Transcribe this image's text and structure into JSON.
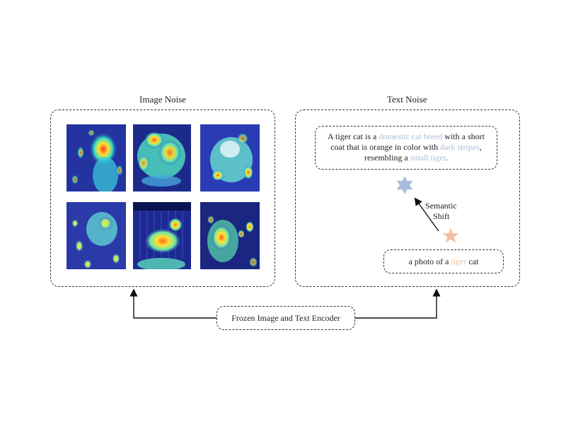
{
  "image_noise": {
    "title": "Image Noise",
    "images": [
      {
        "name": "heatmap-cat-1"
      },
      {
        "name": "heatmap-dog-1"
      },
      {
        "name": "heatmap-dog-2"
      },
      {
        "name": "heatmap-cat-2"
      },
      {
        "name": "heatmap-dog-3"
      },
      {
        "name": "heatmap-cat-3"
      }
    ]
  },
  "text_noise": {
    "title": "Text Noise",
    "description": {
      "part1": "A tiger cat is a ",
      "hl1": "domestic cat breed",
      "part2": " with a short coat that is orange in color with ",
      "hl2": "dark stripes",
      "part3": ", resembling a ",
      "hl3": "small tiger",
      "part4": "."
    },
    "semantic_shift_line1": "Semantic",
    "semantic_shift_line2": "Shift",
    "prompt": {
      "prefix": "a photo of a ",
      "highlight": "tiger",
      "suffix": " cat"
    }
  },
  "encoder": {
    "label": "Frozen Image and Text Encoder"
  },
  "colors": {
    "blue_star": "#a9bcd8",
    "orange_star": "#efbf9d",
    "stroke": "#333333"
  }
}
